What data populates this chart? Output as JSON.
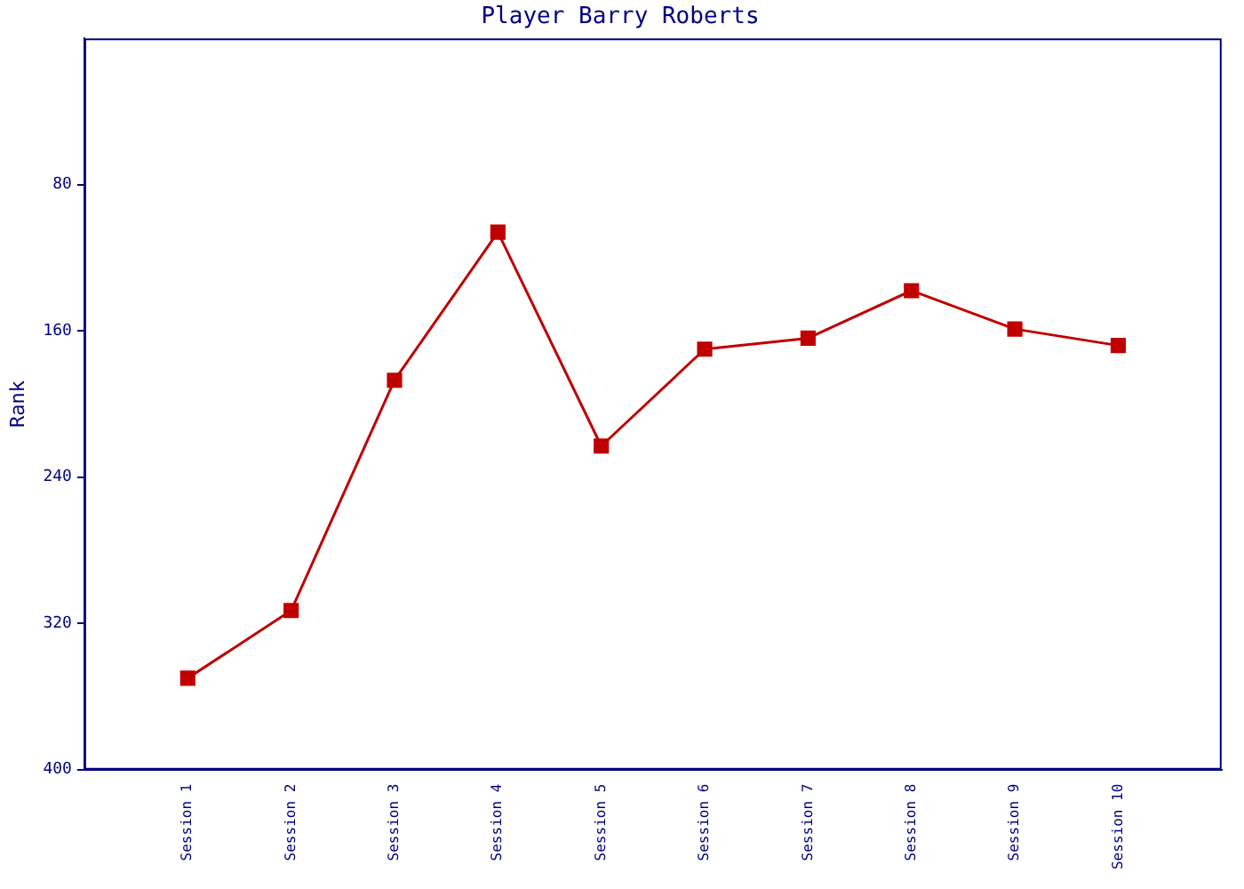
{
  "chart_data": {
    "type": "line",
    "title": "Player Barry Roberts",
    "ylabel": "Rank",
    "categories": [
      "Session 1",
      "Session 2",
      "Session 3",
      "Session 4",
      "Session 5",
      "Session 6",
      "Session 7",
      "Session 8",
      "Session 9",
      "Session 10"
    ],
    "series": [
      {
        "color": "#c00000",
        "values": [
          350,
          313,
          187,
          106,
          223,
          170,
          164,
          138,
          159,
          168
        ]
      }
    ],
    "ylim": [
      400,
      0
    ],
    "yticks": [
      80,
      160,
      240,
      320,
      400
    ],
    "grid": false,
    "legend": false,
    "marker": "square",
    "line_style": "solid"
  }
}
